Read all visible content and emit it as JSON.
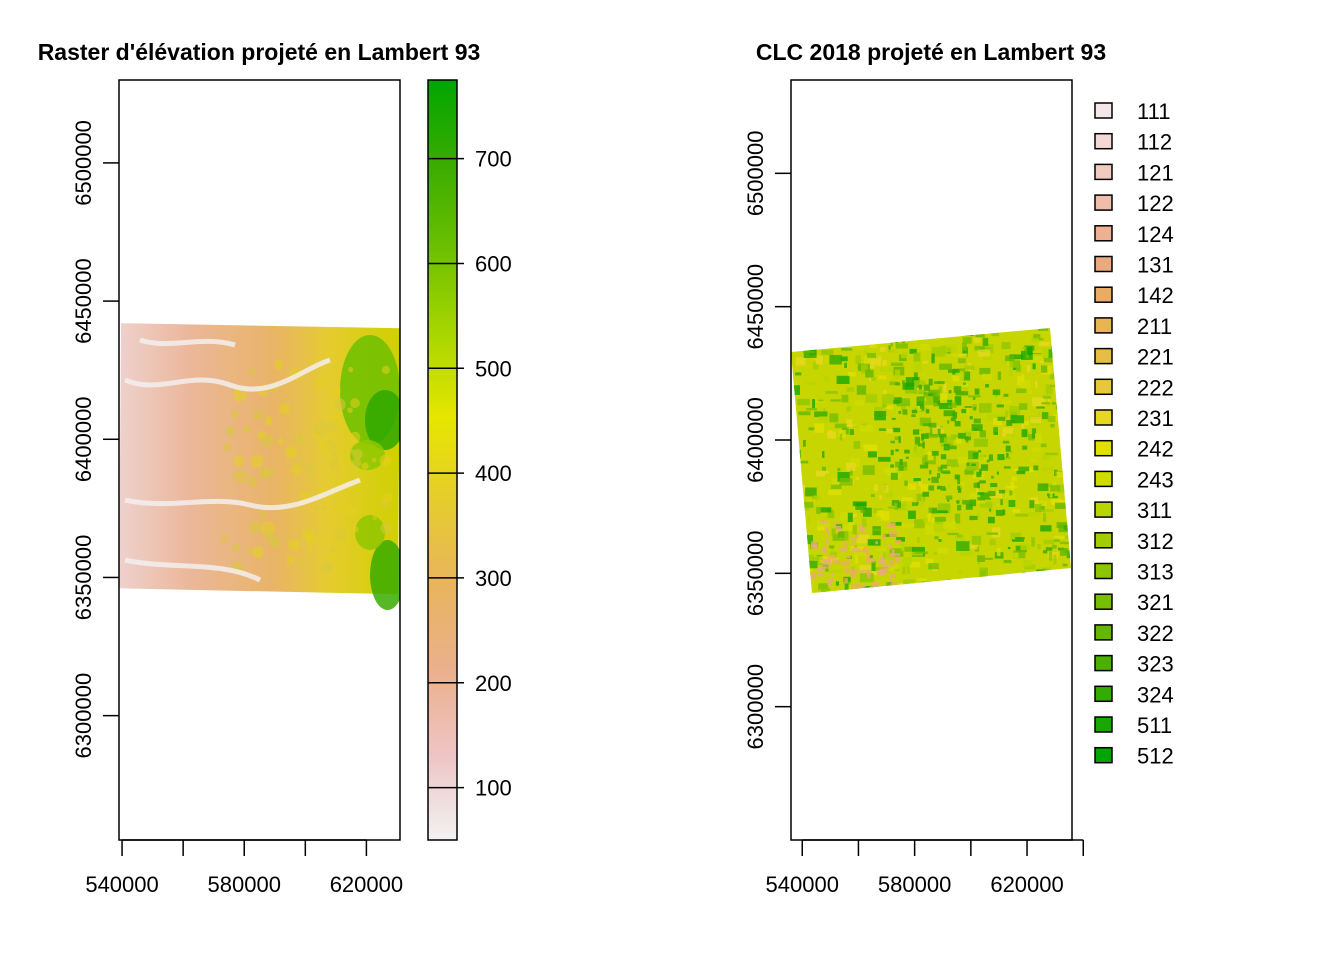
{
  "chart_data": [
    {
      "type": "heatmap",
      "title": "Raster d'élévation projeté en Lambert 93",
      "xlabel": "",
      "ylabel": "",
      "xlim": [
        539000,
        631000
      ],
      "ylim": [
        6255000,
        6530000
      ],
      "x_ticks": [
        540000,
        580000,
        620000
      ],
      "x_tick_labels": [
        "540000",
        "580000",
        "620000"
      ],
      "x_minor_ticks": [
        540000,
        560000,
        580000,
        600000,
        620000
      ],
      "y_ticks": [
        6300000,
        6350000,
        6400000,
        6450000,
        6500000
      ],
      "y_tick_labels": [
        "6300000",
        "6350000",
        "6400000",
        "6450000",
        "6500000"
      ],
      "raster_extent": {
        "x": [
          540000,
          631000
        ],
        "y": [
          6345000,
          6442000
        ]
      },
      "value_range": [
        50,
        775
      ],
      "colorbar": {
        "ticks": [
          100,
          200,
          300,
          400,
          500,
          600,
          700
        ],
        "tick_labels": [
          "100",
          "200",
          "300",
          "400",
          "500",
          "600",
          "700"
        ],
        "colors": [
          "#f2f2f2",
          "#eec5c5",
          "#ebb08d",
          "#e8b45f",
          "#e5cc2e",
          "#e6e600",
          "#a8d600",
          "#6cc000",
          "#3aac00",
          "#00a600"
        ]
      },
      "grid": false
    },
    {
      "type": "heatmap",
      "title": "CLC 2018 projeté en Lambert 93",
      "xlabel": "",
      "ylabel": "",
      "xlim": [
        536000,
        636000
      ],
      "ylim": [
        6250000,
        6535000
      ],
      "x_ticks": [
        540000,
        580000,
        620000
      ],
      "x_tick_labels": [
        "540000",
        "580000",
        "620000"
      ],
      "x_minor_ticks": [
        540000,
        560000,
        580000,
        600000,
        620000,
        640000
      ],
      "y_ticks": [
        6300000,
        6350000,
        6400000,
        6450000,
        6500000
      ],
      "y_tick_labels": [
        "6300000",
        "6350000",
        "6400000",
        "6450000",
        "6500000"
      ],
      "legend_position": "right",
      "legend": [
        {
          "label": "111",
          "color": "#f5e7e7"
        },
        {
          "label": "112",
          "color": "#f3d8d6"
        },
        {
          "label": "121",
          "color": "#f1cbc0"
        },
        {
          "label": "122",
          "color": "#efbda9"
        },
        {
          "label": "124",
          "color": "#edb092"
        },
        {
          "label": "131",
          "color": "#eba97e"
        },
        {
          "label": "142",
          "color": "#e9ac62"
        },
        {
          "label": "211",
          "color": "#e8b551"
        },
        {
          "label": "221",
          "color": "#e7bd45"
        },
        {
          "label": "222",
          "color": "#e6c838"
        },
        {
          "label": "231",
          "color": "#e6d81e"
        },
        {
          "label": "242",
          "color": "#e2e000"
        },
        {
          "label": "243",
          "color": "#cfdc00"
        },
        {
          "label": "311",
          "color": "#b8d500"
        },
        {
          "label": "312",
          "color": "#a2cd00"
        },
        {
          "label": "313",
          "color": "#8dc500"
        },
        {
          "label": "321",
          "color": "#78be00"
        },
        {
          "label": "322",
          "color": "#63b700"
        },
        {
          "label": "323",
          "color": "#4bb000"
        },
        {
          "label": "324",
          "color": "#33ab00"
        },
        {
          "label": "511",
          "color": "#18a800"
        },
        {
          "label": "512",
          "color": "#00a600"
        }
      ],
      "grid": false
    }
  ]
}
